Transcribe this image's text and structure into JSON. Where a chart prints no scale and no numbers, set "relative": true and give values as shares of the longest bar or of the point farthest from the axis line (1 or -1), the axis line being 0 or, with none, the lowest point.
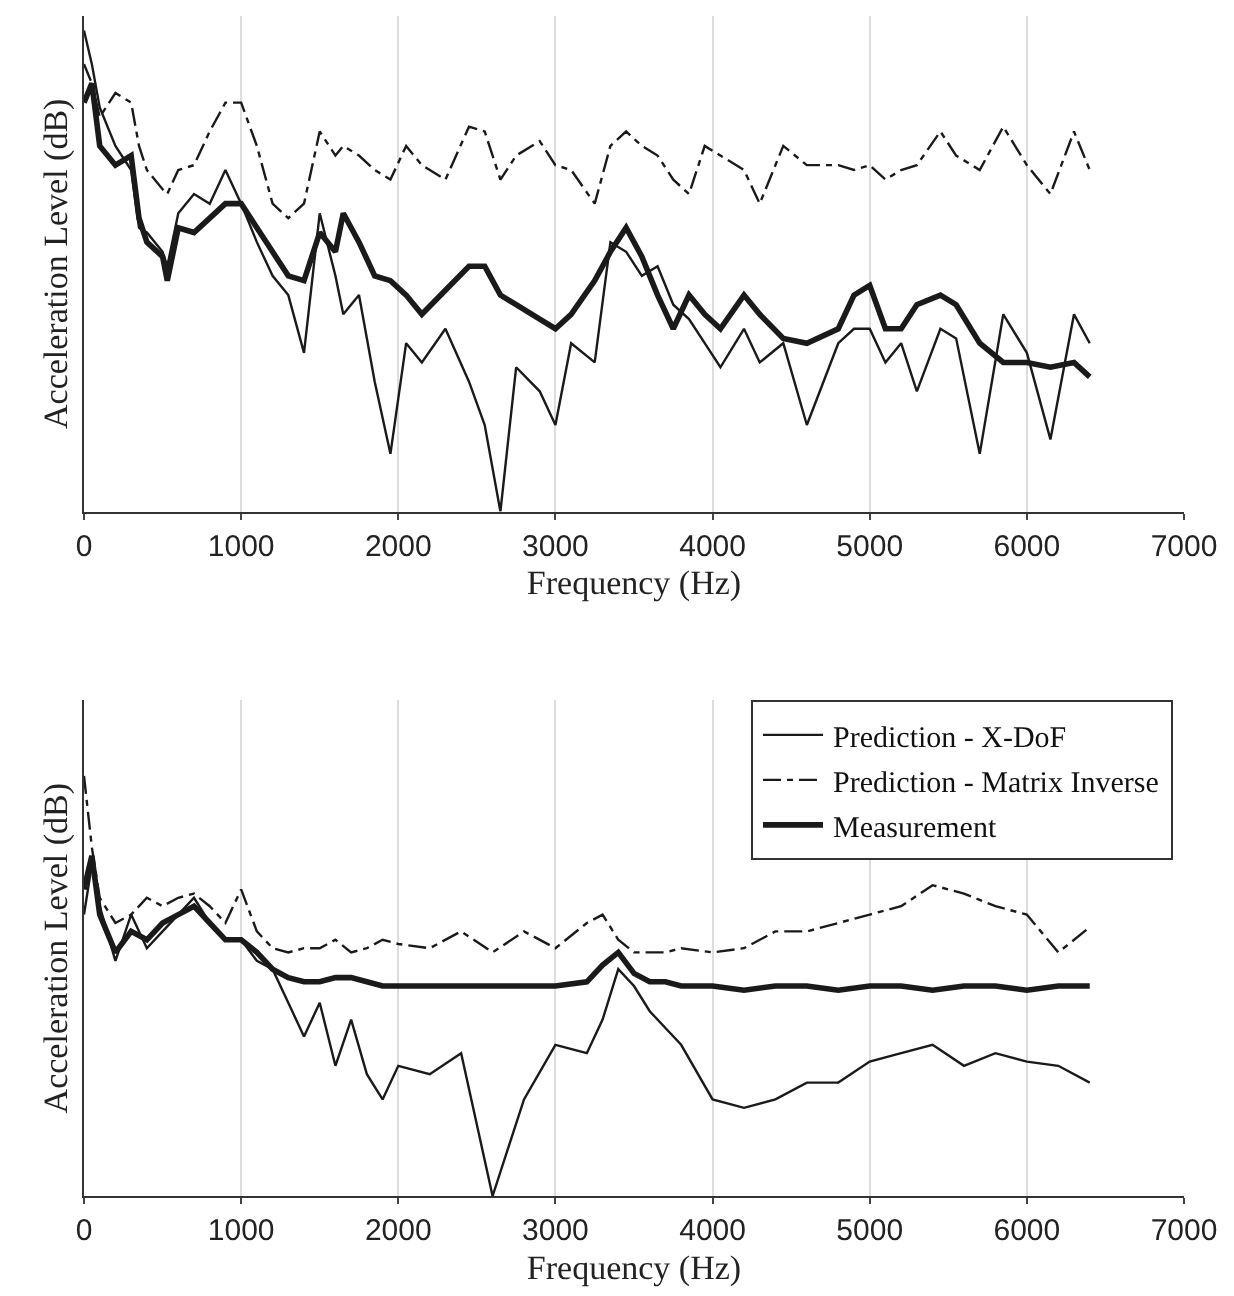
{
  "chart_data": [
    {
      "type": "line",
      "relative": true,
      "xlabel": "Frequency (Hz)",
      "ylabel": "Acceleration Level (dB)",
      "xlim": [
        0,
        7000
      ],
      "xticks": [
        0,
        1000,
        2000,
        3000,
        4000,
        5000,
        6000,
        7000
      ],
      "grid": "x",
      "legend": false,
      "marker": "none",
      "x": [
        0,
        50,
        100,
        200,
        300,
        350,
        400,
        500,
        530,
        600,
        700,
        800,
        900,
        1000,
        1100,
        1200,
        1300,
        1400,
        1500,
        1600,
        1650,
        1750,
        1850,
        1950,
        2050,
        2150,
        2300,
        2450,
        2550,
        2650,
        2750,
        2900,
        3000,
        3100,
        3250,
        3350,
        3450,
        3550,
        3650,
        3750,
        3850,
        3950,
        4050,
        4200,
        4300,
        4450,
        4600,
        4800,
        4900,
        5000,
        5100,
        5200,
        5300,
        5450,
        5550,
        5700,
        5850,
        6000,
        6150,
        6300,
        6400
      ],
      "series": [
        {
          "color": "#1a1a1a",
          "line_style": "solid",
          "values": [
            1.0,
            0.93,
            0.84,
            0.76,
            0.71,
            0.59,
            0.58,
            0.54,
            0.51,
            0.62,
            0.66,
            0.64,
            0.71,
            0.64,
            0.56,
            0.49,
            0.45,
            0.33,
            0.62,
            0.49,
            0.41,
            0.45,
            0.27,
            0.12,
            0.35,
            0.31,
            0.38,
            0.27,
            0.18,
            0.0,
            0.3,
            0.25,
            0.18,
            0.35,
            0.31,
            0.56,
            0.54,
            0.49,
            0.51,
            0.43,
            0.4,
            0.35,
            0.3,
            0.38,
            0.31,
            0.35,
            0.18,
            0.35,
            0.38,
            0.38,
            0.31,
            0.35,
            0.25,
            0.38,
            0.36,
            0.12,
            0.41,
            0.33,
            0.15,
            0.41,
            0.35
          ]
        },
        {
          "color": "#1a1a1a",
          "line_style": "dashdot",
          "values": [
            0.93,
            0.89,
            0.82,
            0.87,
            0.85,
            0.76,
            0.71,
            0.67,
            0.66,
            0.71,
            0.72,
            0.79,
            0.85,
            0.85,
            0.76,
            0.64,
            0.61,
            0.64,
            0.79,
            0.74,
            0.76,
            0.74,
            0.71,
            0.69,
            0.76,
            0.72,
            0.69,
            0.8,
            0.79,
            0.69,
            0.74,
            0.77,
            0.72,
            0.71,
            0.64,
            0.76,
            0.79,
            0.76,
            0.74,
            0.69,
            0.66,
            0.76,
            0.74,
            0.71,
            0.64,
            0.76,
            0.72,
            0.72,
            0.71,
            0.72,
            0.69,
            0.71,
            0.72,
            0.79,
            0.74,
            0.71,
            0.8,
            0.72,
            0.66,
            0.79,
            0.71
          ]
        },
        {
          "color": "#1a1a1a",
          "line_style": "solid",
          "values": [
            0.85,
            0.89,
            0.76,
            0.72,
            0.74,
            0.61,
            0.56,
            0.53,
            0.48,
            0.59,
            0.58,
            0.61,
            0.64,
            0.64,
            0.59,
            0.54,
            0.49,
            0.48,
            0.58,
            0.54,
            0.62,
            0.56,
            0.49,
            0.48,
            0.45,
            0.41,
            0.46,
            0.51,
            0.51,
            0.45,
            0.43,
            0.4,
            0.38,
            0.41,
            0.48,
            0.54,
            0.59,
            0.53,
            0.45,
            0.38,
            0.45,
            0.41,
            0.38,
            0.45,
            0.41,
            0.36,
            0.35,
            0.38,
            0.45,
            0.47,
            0.38,
            0.38,
            0.43,
            0.45,
            0.43,
            0.35,
            0.31,
            0.31,
            0.3,
            0.31,
            0.28
          ]
        }
      ]
    },
    {
      "type": "line",
      "relative": true,
      "xlabel": "Frequency (Hz)",
      "ylabel": "Acceleration Level (dB)",
      "xlim": [
        0,
        7000
      ],
      "xticks": [
        0,
        1000,
        2000,
        3000,
        4000,
        5000,
        6000,
        7000
      ],
      "grid": "x",
      "legend": "top right",
      "marker": "none",
      "x": [
        0,
        50,
        100,
        200,
        300,
        400,
        500,
        600,
        700,
        800,
        900,
        1000,
        1100,
        1200,
        1300,
        1400,
        1500,
        1600,
        1700,
        1800,
        1900,
        2000,
        2200,
        2400,
        2600,
        2800,
        3000,
        3200,
        3300,
        3400,
        3500,
        3600,
        3700,
        3800,
        4000,
        4200,
        4400,
        4600,
        4800,
        5000,
        5200,
        5400,
        5600,
        5800,
        6000,
        6200,
        6400
      ],
      "series": [
        {
          "name": "Prediction - X-DoF",
          "color": "#1a1a1a",
          "line_style": "solid",
          "values": [
            0.67,
            0.79,
            0.69,
            0.56,
            0.67,
            0.59,
            0.63,
            0.67,
            0.71,
            0.65,
            0.61,
            0.61,
            0.56,
            0.54,
            0.46,
            0.38,
            0.46,
            0.31,
            0.42,
            0.29,
            0.23,
            0.31,
            0.29,
            0.34,
            0.0,
            0.23,
            0.36,
            0.34,
            0.42,
            0.54,
            0.5,
            0.44,
            0.4,
            0.36,
            0.23,
            0.21,
            0.23,
            0.27,
            0.27,
            0.32,
            0.34,
            0.36,
            0.31,
            0.34,
            0.32,
            0.31,
            0.27
          ]
        },
        {
          "name": "Prediction - Matrix Inverse",
          "color": "#1a1a1a",
          "line_style": "dashdot",
          "values": [
            1.0,
            0.83,
            0.71,
            0.65,
            0.67,
            0.71,
            0.69,
            0.71,
            0.72,
            0.69,
            0.65,
            0.73,
            0.63,
            0.59,
            0.58,
            0.59,
            0.59,
            0.61,
            0.58,
            0.59,
            0.61,
            0.6,
            0.59,
            0.63,
            0.58,
            0.63,
            0.59,
            0.65,
            0.67,
            0.61,
            0.58,
            0.58,
            0.58,
            0.59,
            0.58,
            0.59,
            0.63,
            0.63,
            0.65,
            0.67,
            0.69,
            0.74,
            0.72,
            0.69,
            0.67,
            0.58,
            0.64
          ]
        },
        {
          "name": "Measurement",
          "color": "#1a1a1a",
          "line_style": "solid",
          "values": [
            0.73,
            0.81,
            0.67,
            0.58,
            0.63,
            0.61,
            0.65,
            0.67,
            0.69,
            0.65,
            0.61,
            0.61,
            0.58,
            0.54,
            0.52,
            0.51,
            0.51,
            0.52,
            0.52,
            0.51,
            0.5,
            0.5,
            0.5,
            0.5,
            0.5,
            0.5,
            0.5,
            0.51,
            0.55,
            0.58,
            0.53,
            0.51,
            0.51,
            0.5,
            0.5,
            0.49,
            0.5,
            0.5,
            0.49,
            0.5,
            0.5,
            0.49,
            0.5,
            0.5,
            0.49,
            0.5,
            0.5
          ]
        }
      ]
    }
  ]
}
